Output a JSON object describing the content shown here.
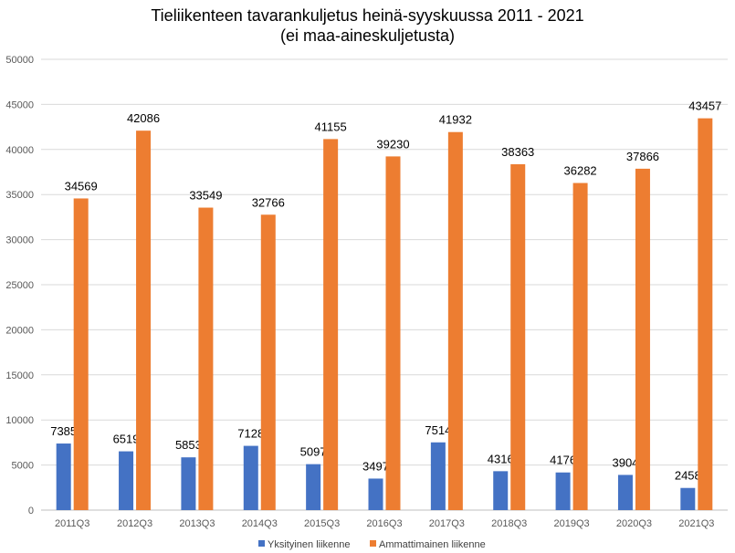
{
  "chart_data": {
    "type": "bar",
    "title": "Tieliikenteen tavarankuljetus heinä-syyskuussa 2011 - 2021",
    "subtitle": "(ei maa-aineskuljetusta)",
    "categories": [
      "2011Q3",
      "2012Q3",
      "2013Q3",
      "2014Q3",
      "2015Q3",
      "2016Q3",
      "2017Q3",
      "2018Q3",
      "2019Q3",
      "2020Q3",
      "2021Q3"
    ],
    "series": [
      {
        "name": "Yksityinen liikenne",
        "color": "#4472c4",
        "values": [
          7385,
          6519,
          5853,
          7128,
          5097,
          3497,
          7514,
          4316,
          4176,
          3904,
          2458
        ]
      },
      {
        "name": "Ammattimainen liikenne",
        "color": "#ed7d31",
        "values": [
          34569,
          42086,
          33549,
          32766,
          41155,
          39230,
          41932,
          38363,
          36282,
          37866,
          43457
        ]
      }
    ],
    "ylim": [
      0,
      50000
    ],
    "yticks": [
      "0",
      "5000",
      "10000",
      "15000",
      "20000",
      "25000",
      "30000",
      "35000",
      "40000",
      "45000",
      "50000"
    ],
    "grid": true,
    "legend_position": "bottom"
  }
}
